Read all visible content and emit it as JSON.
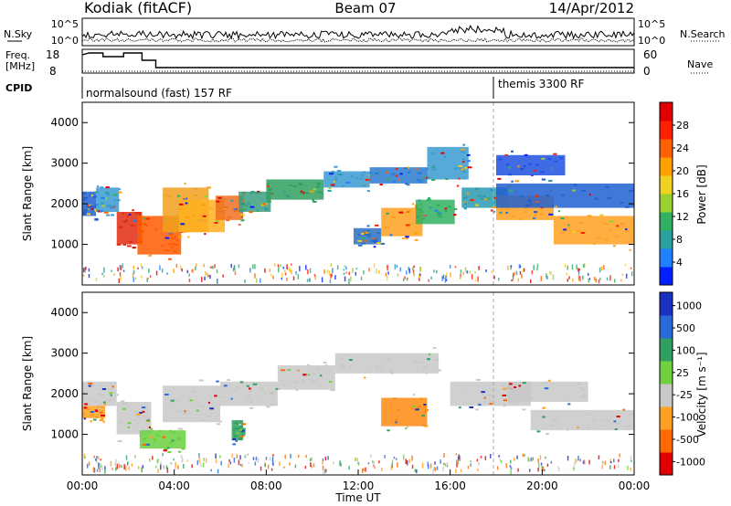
{
  "header": {
    "site": "Kodiak (fitACF)",
    "beam": "Beam 07",
    "date": "14/Apr/2012"
  },
  "top_panels": {
    "nsky_label": "N.Sky",
    "nsearch_label": "N.Search",
    "freq_label_line1": "Freq.",
    "freq_label_line2": "[MHz]",
    "nave_label": "Nave",
    "cpid_label": "CPID",
    "noise_left_ticks": [
      "10^5",
      "10^0"
    ],
    "noise_right_ticks": [
      "10^5",
      "10^0"
    ],
    "freq_left_ticks": [
      "18",
      "8"
    ],
    "nave_right_ticks": [
      "60",
      "0"
    ],
    "cpid_segments": [
      {
        "label": "normalsound (fast) 157 RF",
        "start_hour": 0.0
      },
      {
        "label": "themis 3300 RF",
        "start_hour": 18.0
      }
    ]
  },
  "chart_data": [
    {
      "type": "heatmap",
      "name": "power-panel",
      "ylabel": "Slant Range [km]",
      "ylim": [
        0,
        4500
      ],
      "yticks": [
        "1000",
        "2000",
        "3000",
        "4000"
      ],
      "xlim": [
        0,
        24
      ],
      "colorbar": {
        "label": "Power [dB]",
        "ticks": [
          "4",
          "8",
          "12",
          "16",
          "20",
          "24",
          "28"
        ],
        "colors": [
          "#0020ff",
          "#2080ff",
          "#2aa0a0",
          "#30b060",
          "#9ad030",
          "#f0d020",
          "#ffa000",
          "#ff6000",
          "#ff2000",
          "#e00000"
        ]
      },
      "bands": [
        {
          "h0": 0.0,
          "h1": 0.6,
          "r0": 1700,
          "r1": 2300,
          "color": "#2060d0"
        },
        {
          "h0": 0.6,
          "h1": 1.6,
          "r0": 1800,
          "r1": 2400,
          "color": "#3a9ad0"
        },
        {
          "h0": 1.5,
          "h1": 2.6,
          "r0": 1000,
          "r1": 1800,
          "color": "#e02a10"
        },
        {
          "h0": 2.4,
          "h1": 4.3,
          "r0": 750,
          "r1": 1700,
          "color": "#ff5a00"
        },
        {
          "h0": 3.5,
          "h1": 5.5,
          "r0": 1300,
          "r1": 2400,
          "color": "#f0a020"
        },
        {
          "h0": 4.2,
          "h1": 6.2,
          "r0": 1300,
          "r1": 2100,
          "color": "#ffb020"
        },
        {
          "h0": 5.8,
          "h1": 7.0,
          "r0": 1600,
          "r1": 2200,
          "color": "#f07020"
        },
        {
          "h0": 6.8,
          "h1": 8.2,
          "r0": 1800,
          "r1": 2300,
          "color": "#3aa080"
        },
        {
          "h0": 8.0,
          "h1": 10.5,
          "r0": 2100,
          "r1": 2600,
          "color": "#30a060"
        },
        {
          "h0": 10.5,
          "h1": 12.5,
          "r0": 2400,
          "r1": 2800,
          "color": "#3a9ad0"
        },
        {
          "h0": 12.5,
          "h1": 15.0,
          "r0": 2500,
          "r1": 2900,
          "color": "#2a7ad0"
        },
        {
          "h0": 15.0,
          "h1": 16.8,
          "r0": 2600,
          "r1": 3400,
          "color": "#3a9ad0"
        },
        {
          "h0": 11.8,
          "h1": 13.0,
          "r0": 1000,
          "r1": 1400,
          "color": "#2a70c0"
        },
        {
          "h0": 13.0,
          "h1": 14.8,
          "r0": 1200,
          "r1": 1900,
          "color": "#ffa020"
        },
        {
          "h0": 14.5,
          "h1": 16.2,
          "r0": 1500,
          "r1": 2100,
          "color": "#30b060"
        },
        {
          "h0": 16.5,
          "h1": 18.5,
          "r0": 1900,
          "r1": 2400,
          "color": "#2a9ab0"
        },
        {
          "h0": 18.0,
          "h1": 20.5,
          "r0": 1600,
          "r1": 2200,
          "color": "#ffa020"
        },
        {
          "h0": 20.5,
          "h1": 24.0,
          "r0": 1000,
          "r1": 1700,
          "color": "#ffa020"
        },
        {
          "h0": 18.0,
          "h1": 24.0,
          "r0": 1900,
          "r1": 2500,
          "color": "#2060d0"
        },
        {
          "h0": 18.0,
          "h1": 21.0,
          "r0": 2700,
          "r1": 3200,
          "color": "#2050e0"
        }
      ]
    },
    {
      "type": "heatmap",
      "name": "velocity-panel",
      "ylabel": "Slant Range [km]",
      "ylim": [
        0,
        4500
      ],
      "yticks": [
        "1000",
        "2000",
        "3000",
        "4000"
      ],
      "xlim": [
        0,
        24
      ],
      "xticks": [
        "00:00",
        "04:00",
        "08:00",
        "12:00",
        "16:00",
        "20:00",
        "00:00"
      ],
      "xlabel": "Time UT",
      "colorbar": {
        "label": "Velocity [m s⁻¹]",
        "ticks": [
          "1000",
          "500",
          "100",
          "25",
          "-25",
          "-100",
          "-500",
          "-1000"
        ],
        "colors": [
          "#1a30c0",
          "#2a6ad8",
          "#30a060",
          "#70d040",
          "#c8c8c8",
          "#ffa020",
          "#ff6a00",
          "#e00000"
        ]
      },
      "bands": [
        {
          "h0": 0.0,
          "h1": 1.5,
          "r0": 1700,
          "r1": 2300,
          "color": "#c8c8c8"
        },
        {
          "h0": 1.5,
          "h1": 3.0,
          "r0": 1000,
          "r1": 1800,
          "color": "#c8c8c8"
        },
        {
          "h0": 2.5,
          "h1": 4.5,
          "r0": 650,
          "r1": 1100,
          "color": "#6ad040"
        },
        {
          "h0": 3.5,
          "h1": 6.0,
          "r0": 1300,
          "r1": 2200,
          "color": "#c8c8c8"
        },
        {
          "h0": 6.0,
          "h1": 8.5,
          "r0": 1700,
          "r1": 2300,
          "color": "#c8c8c8"
        },
        {
          "h0": 8.5,
          "h1": 11.0,
          "r0": 2100,
          "r1": 2700,
          "color": "#c8c8c8"
        },
        {
          "h0": 11.0,
          "h1": 15.5,
          "r0": 2500,
          "r1": 3000,
          "color": "#c8c8c8"
        },
        {
          "h0": 13.0,
          "h1": 15.0,
          "r0": 1200,
          "r1": 1900,
          "color": "#ff8a10"
        },
        {
          "h0": 16.0,
          "h1": 19.5,
          "r0": 1700,
          "r1": 2300,
          "color": "#c8c8c8"
        },
        {
          "h0": 19.5,
          "h1": 24.0,
          "r0": 1100,
          "r1": 1600,
          "color": "#c8c8c8"
        },
        {
          "h0": 18.5,
          "h1": 22.0,
          "r0": 1800,
          "r1": 2300,
          "color": "#c8c8c8"
        },
        {
          "h0": 0.0,
          "h1": 1.0,
          "r0": 1400,
          "r1": 1700,
          "color": "#ffa020"
        },
        {
          "h0": 6.5,
          "h1": 7.0,
          "r0": 850,
          "r1": 1350,
          "color": "#30a060"
        }
      ]
    }
  ]
}
